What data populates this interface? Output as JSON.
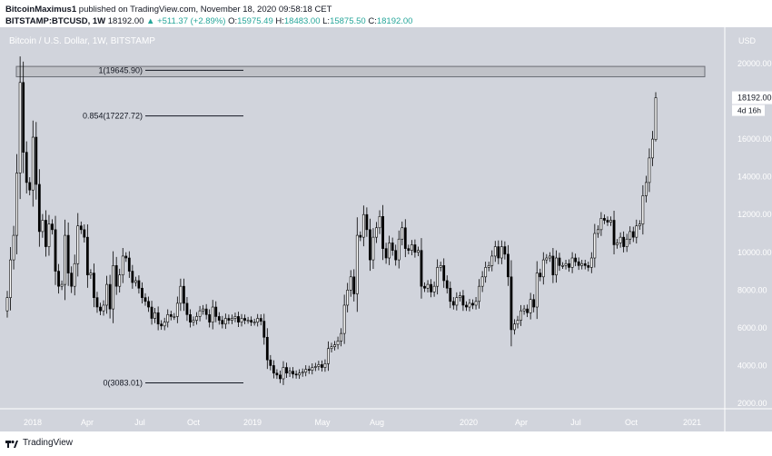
{
  "header": {
    "author": "BitcoinMaximus1",
    "published_text": "published on TradingView.com, November 18, 2020 09:58:18 CET",
    "symbol": "BITSTAMP:BTCUSD, 1W",
    "last": "18192.00",
    "change": "+511.37 (+2.89%)",
    "o_label": "O:",
    "o_value": "15975.49",
    "h_label": "H:",
    "h_value": "18483.00",
    "l_label": "L:",
    "l_value": "15875.50",
    "c_label": "C:",
    "c_value": "18192.00"
  },
  "chart_data": {
    "type": "candlestick",
    "title": "Bitcoin / U.S. Dollar, 1W, BITSTAMP",
    "currency_label": "USD",
    "ylim": [
      1000,
      21200
    ],
    "y_ticks": [
      2000,
      4000,
      6000,
      8000,
      10000,
      12000,
      14000,
      16000,
      18000,
      20000
    ],
    "y_tick_labels": [
      "2000.00",
      "4000.00",
      "6000.00",
      "8000.00",
      "10000.00",
      "12000.00",
      "14000.00",
      "16000.00",
      "18000.00",
      "20000.00"
    ],
    "x_tick_labels": [
      "2018",
      "Apr",
      "Jul",
      "Oct",
      "2019",
      "May",
      "Aug",
      "2020",
      "Apr",
      "Jul",
      "Oct",
      "2021"
    ],
    "current_price": "18192.00",
    "countdown": "4d 16h",
    "fib_levels": [
      {
        "label": "1(19645.90)",
        "price": 19645.9
      },
      {
        "label": "0.854(17227.72)",
        "price": 17227.72
      },
      {
        "label": "0(3083.01)",
        "price": 3083.01
      }
    ],
    "resistance_zone": [
      19300,
      19850
    ],
    "candles_close": [
      7600,
      9600,
      10900,
      14200,
      19000,
      15300,
      13700,
      13300,
      16100,
      13600,
      11100,
      11700,
      10300,
      11500,
      11200,
      9000,
      8200,
      8300,
      10900,
      8900,
      8200,
      9400,
      11400,
      11200,
      10800,
      8800,
      8900,
      7600,
      7100,
      6900,
      7200,
      8300,
      7000,
      9300,
      8200,
      8800,
      9800,
      9700,
      9000,
      8400,
      8500,
      8100,
      7600,
      7400,
      7100,
      6500,
      6800,
      6200,
      6100,
      6300,
      6700,
      6600,
      6600,
      7300,
      8200,
      7300,
      6700,
      6300,
      6400,
      6600,
      6900,
      7000,
      6700,
      6300,
      7100,
      6600,
      6400,
      6200,
      6500,
      6400,
      6500,
      6600,
      6300,
      6500,
      6400,
      6400,
      6300,
      6300,
      6500,
      6350,
      5500,
      4300,
      4000,
      3600,
      3500,
      3300,
      3900,
      3600,
      3700,
      3550,
      3500,
      3600,
      3650,
      3800,
      3750,
      3900,
      3950,
      4050,
      3900,
      4100,
      4900,
      5000,
      5100,
      5300,
      5700,
      7200,
      8000,
      8700,
      7800,
      10900,
      10800,
      12000,
      11200,
      9600,
      10800,
      11300,
      11900,
      10200,
      9700,
      10500,
      10100,
      9600,
      10700,
      11300,
      10200,
      10100,
      10400,
      10000,
      10100,
      8200,
      8100,
      8300,
      7900,
      8200,
      9200,
      9300,
      8500,
      8100,
      7400,
      7200,
      7600,
      7700,
      7200,
      7100,
      7300,
      7200,
      7400,
      8200,
      8700,
      9200,
      9300,
      9800,
      10300,
      9700,
      10300,
      9900,
      8700,
      5900,
      6200,
      6400,
      6900,
      7000,
      6800,
      7500,
      7100,
      8900,
      8700,
      9600,
      9700,
      9800,
      8800,
      9700,
      9300,
      9300,
      9400,
      9200,
      9700,
      9500,
      9300,
      9400,
      9300,
      9200,
      9700,
      11000,
      11200,
      11800,
      11700,
      11600,
      11700,
      10400,
      10500,
      10800,
      10300,
      10700,
      11100,
      10800,
      11400,
      11500,
      13000,
      13700,
      15000,
      16000,
      18192
    ]
  }
}
